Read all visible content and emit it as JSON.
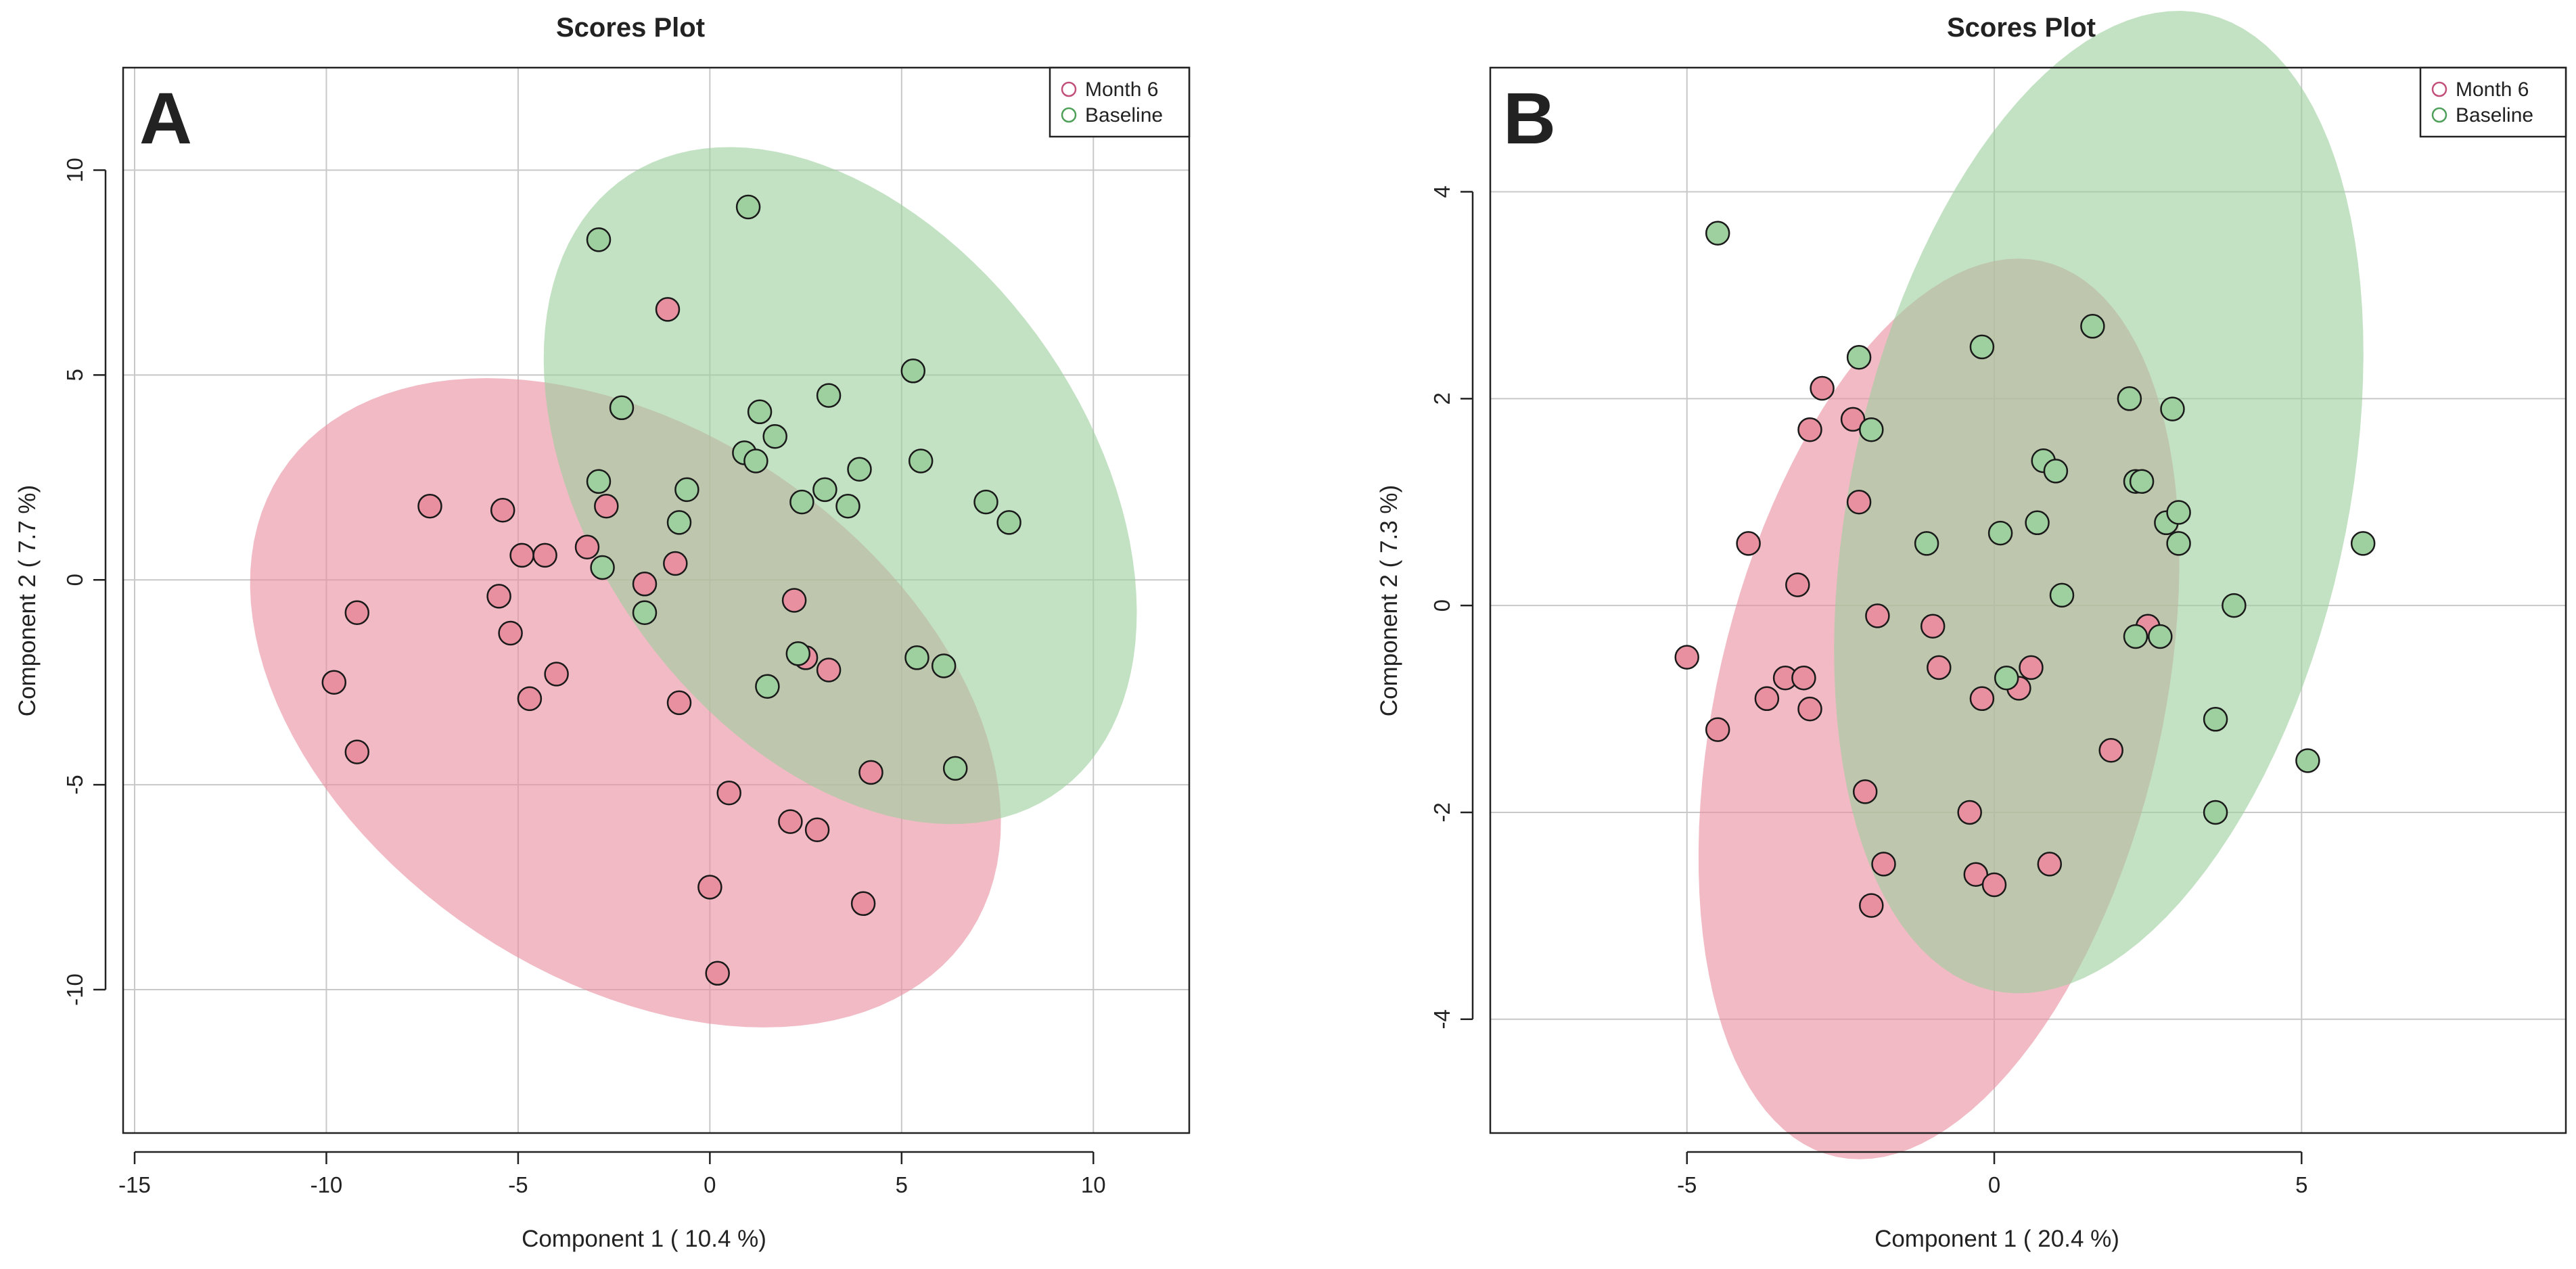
{
  "chart_data": [
    {
      "type": "scatter",
      "title": "Scores Plot",
      "panel_label": "A",
      "xlabel": "Component 1 ( 10.4 %)",
      "ylabel": "Component 2 ( 7.7 %)",
      "xlim": [
        -15.3,
        12.5
      ],
      "ylim": [
        -13.5,
        12.5
      ],
      "x_ticks": [
        -15,
        -10,
        -5,
        0,
        5,
        10
      ],
      "y_ticks": [
        -10,
        -5,
        0,
        5,
        10
      ],
      "grid": true,
      "legend_position": "top-right",
      "series": [
        {
          "name": "Month 6",
          "color": "#e8909f",
          "ellipse": {
            "cx": -2.2,
            "cy": -3.0,
            "rx": 10.6,
            "ry": 6.8,
            "angle_deg": -30
          },
          "points": [
            {
              "x": -7.3,
              "y": 1.8
            },
            {
              "x": -5.4,
              "y": 1.7
            },
            {
              "x": -4.9,
              "y": 0.6
            },
            {
              "x": -5.5,
              "y": -0.4
            },
            {
              "x": -5.2,
              "y": -1.3
            },
            {
              "x": -4.3,
              "y": 0.6
            },
            {
              "x": -3.2,
              "y": 0.8
            },
            {
              "x": -2.7,
              "y": 1.8
            },
            {
              "x": -1.7,
              "y": -0.1
            },
            {
              "x": -0.9,
              "y": 0.4
            },
            {
              "x": -0.8,
              "y": -3.0
            },
            {
              "x": -4.7,
              "y": -2.9
            },
            {
              "x": -4.0,
              "y": -2.3
            },
            {
              "x": -9.2,
              "y": -0.8
            },
            {
              "x": -9.8,
              "y": -2.5
            },
            {
              "x": -9.2,
              "y": -4.2
            },
            {
              "x": -1.1,
              "y": 6.6
            },
            {
              "x": 2.2,
              "y": -0.5
            },
            {
              "x": 2.5,
              "y": -1.9
            },
            {
              "x": 3.1,
              "y": -2.2
            },
            {
              "x": 0.5,
              "y": -5.2
            },
            {
              "x": 2.1,
              "y": -5.9
            },
            {
              "x": 2.8,
              "y": -6.1
            },
            {
              "x": 4.2,
              "y": -4.7
            },
            {
              "x": 0.0,
              "y": -7.5
            },
            {
              "x": 4.0,
              "y": -7.9
            },
            {
              "x": 0.2,
              "y": -9.6
            }
          ]
        },
        {
          "name": "Baseline",
          "color": "#9ecf9e",
          "ellipse": {
            "cx": 3.4,
            "cy": 2.3,
            "rx": 9.4,
            "ry": 6.3,
            "angle_deg": -50
          },
          "points": [
            {
              "x": -2.9,
              "y": 8.3
            },
            {
              "x": 1.0,
              "y": 9.1
            },
            {
              "x": -2.3,
              "y": 4.2
            },
            {
              "x": 1.3,
              "y": 4.1
            },
            {
              "x": 3.1,
              "y": 4.5
            },
            {
              "x": 5.3,
              "y": 5.1
            },
            {
              "x": 1.7,
              "y": 3.5
            },
            {
              "x": 0.9,
              "y": 3.1
            },
            {
              "x": 1.2,
              "y": 2.9
            },
            {
              "x": -2.9,
              "y": 2.4
            },
            {
              "x": -0.6,
              "y": 2.2
            },
            {
              "x": 3.0,
              "y": 2.2
            },
            {
              "x": 2.4,
              "y": 1.9
            },
            {
              "x": 3.6,
              "y": 1.8
            },
            {
              "x": 3.9,
              "y": 2.7
            },
            {
              "x": 5.5,
              "y": 2.9
            },
            {
              "x": 7.2,
              "y": 1.9
            },
            {
              "x": 7.8,
              "y": 1.4
            },
            {
              "x": -0.8,
              "y": 1.4
            },
            {
              "x": -2.8,
              "y": 0.3
            },
            {
              "x": -1.7,
              "y": -0.8
            },
            {
              "x": 2.3,
              "y": -1.8
            },
            {
              "x": 1.5,
              "y": -2.6
            },
            {
              "x": 5.4,
              "y": -1.9
            },
            {
              "x": 6.1,
              "y": -2.1
            },
            {
              "x": 6.4,
              "y": -4.6
            }
          ]
        }
      ]
    },
    {
      "type": "scatter",
      "title": "Scores Plot",
      "panel_label": "B",
      "xlabel": "Component 1 ( 20.4 %)",
      "ylabel": "Component 2 ( 7.3 %)",
      "xlim": [
        -8.2,
        9.3
      ],
      "ylim": [
        -5.1,
        5.2
      ],
      "x_ticks": [
        -5,
        0,
        5
      ],
      "y_ticks": [
        -4,
        -2,
        0,
        2,
        4
      ],
      "grid": true,
      "legend_position": "top-right",
      "series": [
        {
          "name": "Month 6",
          "color": "#e8909f",
          "ellipse": {
            "cx": -0.9,
            "cy": -1.0,
            "rx": 3.35,
            "ry": 4.8,
            "angle_deg": -36
          },
          "points": [
            {
              "x": -2.8,
              "y": 2.1
            },
            {
              "x": -3.0,
              "y": 1.7
            },
            {
              "x": -2.3,
              "y": 1.8
            },
            {
              "x": -2.2,
              "y": 1.0
            },
            {
              "x": -4.0,
              "y": 0.6
            },
            {
              "x": -3.2,
              "y": 0.2
            },
            {
              "x": -1.9,
              "y": -0.1
            },
            {
              "x": -5.0,
              "y": -0.5
            },
            {
              "x": -3.4,
              "y": -0.7
            },
            {
              "x": -3.1,
              "y": -0.7
            },
            {
              "x": -3.7,
              "y": -0.9
            },
            {
              "x": -3.0,
              "y": -1.0
            },
            {
              "x": -4.5,
              "y": -1.2
            },
            {
              "x": -1.0,
              "y": -0.2
            },
            {
              "x": -0.9,
              "y": -0.6
            },
            {
              "x": -0.2,
              "y": -0.9
            },
            {
              "x": 0.4,
              "y": -0.8
            },
            {
              "x": 0.6,
              "y": -0.6
            },
            {
              "x": 2.5,
              "y": -0.2
            },
            {
              "x": 1.9,
              "y": -1.4
            },
            {
              "x": -2.1,
              "y": -1.8
            },
            {
              "x": -0.4,
              "y": -2.0
            },
            {
              "x": -1.8,
              "y": -2.5
            },
            {
              "x": 0.9,
              "y": -2.5
            },
            {
              "x": -0.3,
              "y": -2.6
            },
            {
              "x": 0.0,
              "y": -2.7
            },
            {
              "x": -2.0,
              "y": -2.9
            }
          ]
        },
        {
          "name": "Baseline",
          "color": "#9ecf9e",
          "ellipse": {
            "cx": 1.7,
            "cy": 1.0,
            "rx": 3.75,
            "ry": 5.2,
            "angle_deg": -36
          },
          "points": [
            {
              "x": -4.5,
              "y": 3.6
            },
            {
              "x": -2.2,
              "y": 2.4
            },
            {
              "x": -2.0,
              "y": 1.7
            },
            {
              "x": -0.2,
              "y": 2.5
            },
            {
              "x": 1.6,
              "y": 2.7
            },
            {
              "x": 2.2,
              "y": 2.0
            },
            {
              "x": 2.9,
              "y": 1.9
            },
            {
              "x": 2.3,
              "y": 1.2
            },
            {
              "x": 2.4,
              "y": 1.2
            },
            {
              "x": 0.8,
              "y": 1.4
            },
            {
              "x": 1.0,
              "y": 1.3
            },
            {
              "x": 0.7,
              "y": 0.8
            },
            {
              "x": 0.1,
              "y": 0.7
            },
            {
              "x": -1.1,
              "y": 0.6
            },
            {
              "x": 2.8,
              "y": 0.8
            },
            {
              "x": 3.0,
              "y": 0.9
            },
            {
              "x": 3.0,
              "y": 0.6
            },
            {
              "x": 1.1,
              "y": 0.1
            },
            {
              "x": 3.9,
              "y": 0.0
            },
            {
              "x": 2.3,
              "y": -0.3
            },
            {
              "x": 2.7,
              "y": -0.3
            },
            {
              "x": 6.0,
              "y": 0.6
            },
            {
              "x": 0.2,
              "y": -0.7
            },
            {
              "x": 3.6,
              "y": -1.1
            },
            {
              "x": 5.1,
              "y": -1.5
            },
            {
              "x": 3.6,
              "y": -2.0
            }
          ]
        }
      ]
    }
  ]
}
